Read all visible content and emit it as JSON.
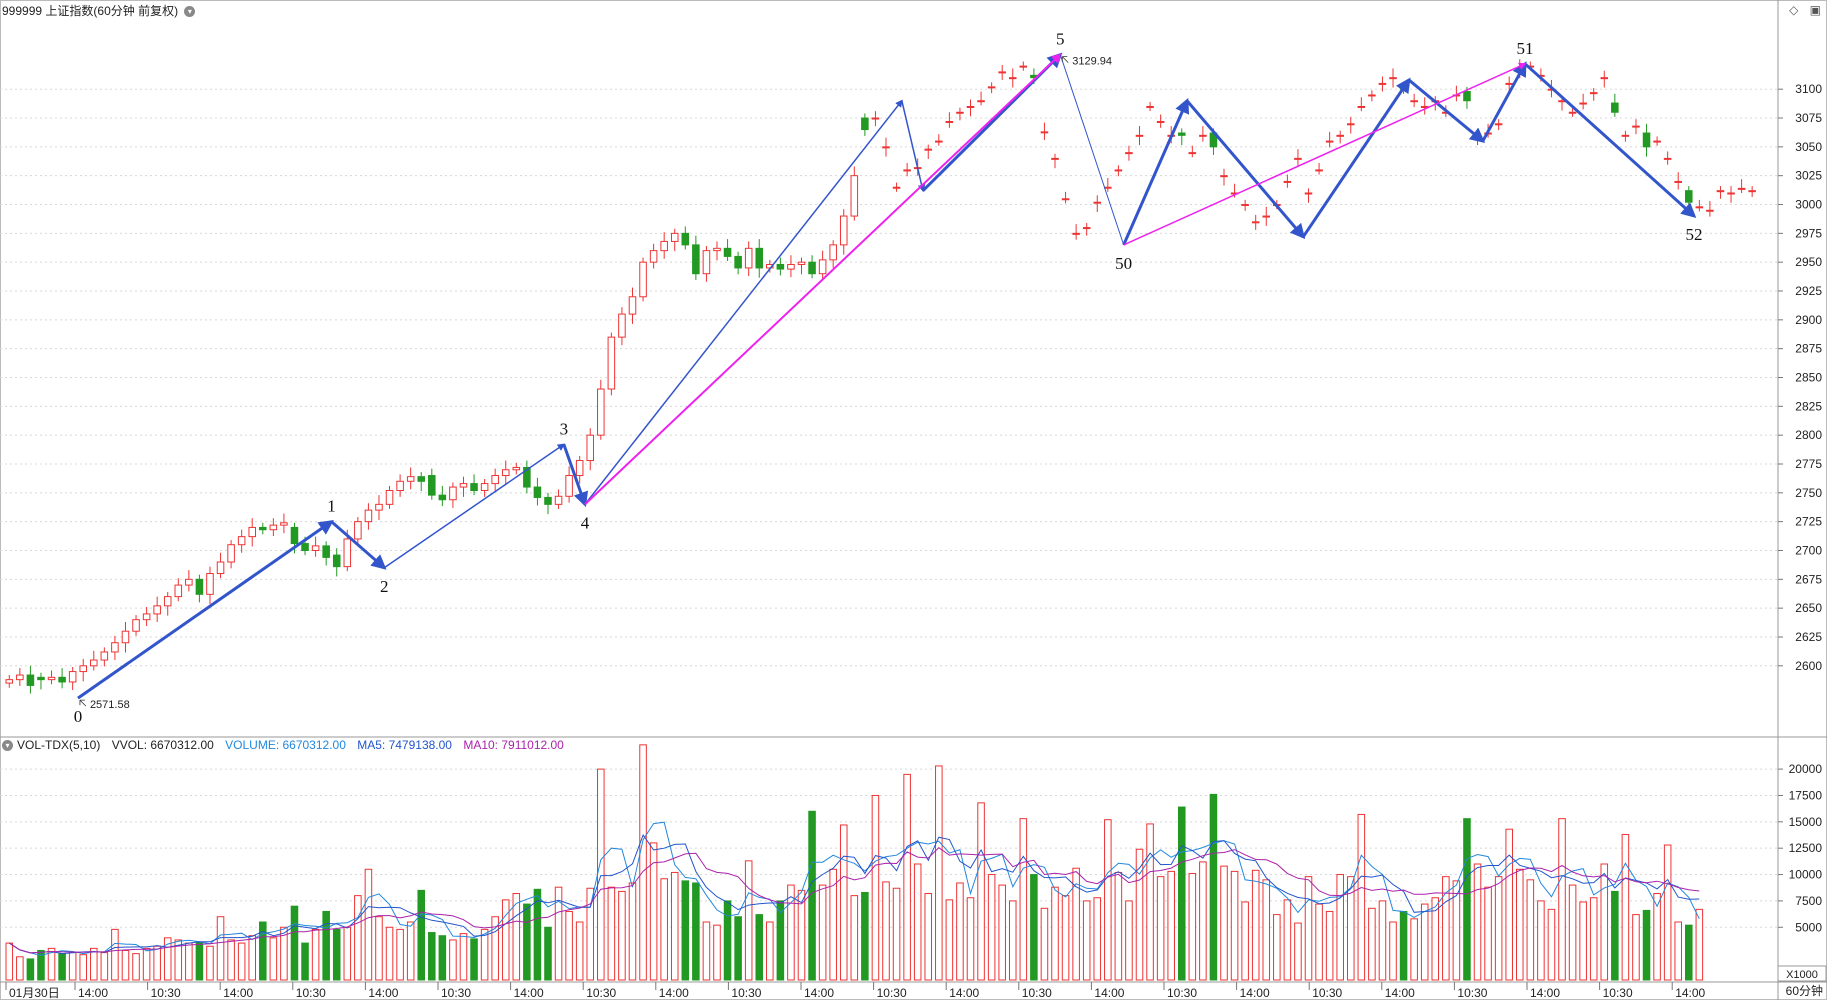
{
  "header": {
    "code": "999999",
    "name": "上证指数",
    "period": "(60分钟 前复权)",
    "menu_icon": "chevron-down-icon",
    "right_icons": [
      "diamond-icon",
      "window-restore-icon"
    ]
  },
  "volume_header": {
    "indicator": "VOL-TDX(5,10)",
    "vvol": "VVOL: 6670312.00",
    "volume": "VOLUME: 6670312.00",
    "ma5": "MA5: 7479138.00",
    "ma10": "MA10: 7911012.00"
  },
  "footer": {
    "first_date": "01月30日",
    "period_button": "60分钟",
    "unit": "X1000"
  },
  "colors": {
    "up": "#ee3333",
    "down": "#229922",
    "wave_blue": "#3355cc",
    "wave_magenta": "#ee22ee",
    "volume_line": "#2288dd",
    "ma5": "#2255cc",
    "ma10": "#aa22aa"
  },
  "chart_data": [
    {
      "type": "candlestick",
      "title": "999999 上证指数(60分钟 前复权)",
      "ylim": [
        2540,
        3160
      ],
      "yticks": [
        2600,
        2625,
        2650,
        2675,
        2700,
        2725,
        2750,
        2775,
        2800,
        2825,
        2850,
        2875,
        2900,
        2925,
        2950,
        2975,
        3000,
        3025,
        3050,
        3075,
        3100
      ],
      "xtick_labels": [
        "01月30日",
        "14:00",
        "10:30",
        "14:00",
        "10:30",
        "14:00",
        "10:30",
        "14:00",
        "10:30",
        "14:00",
        "10:30",
        "14:00",
        "10:30",
        "14:00",
        "10:30",
        "14:00",
        "10:30",
        "14:00",
        "10:30",
        "14:00",
        "10:30",
        "14:00",
        "10:30",
        "14:00"
      ],
      "grid": true,
      "annotations": [
        {
          "text": "2571.58"
        },
        {
          "text": "3129.94"
        }
      ],
      "wave_labels": [
        "0",
        "1",
        "2",
        "3",
        "4",
        "5",
        "50",
        "51",
        "52"
      ],
      "wave_points": [
        {
          "label": "0",
          "price": 2572
        },
        {
          "label": "1",
          "price": 2725
        },
        {
          "label": "2",
          "price": 2685
        },
        {
          "label": "3",
          "price": 2792
        },
        {
          "label": "4",
          "price": 2740
        },
        {
          "label": "",
          "price": 3090
        },
        {
          "label": "",
          "price": 3012
        },
        {
          "label": "5",
          "price": 3130
        },
        {
          "label": "50",
          "price": 2965
        },
        {
          "label": "",
          "price": 3090
        },
        {
          "label": "",
          "price": 2972
        },
        {
          "label": "",
          "price": 3108
        },
        {
          "label": "",
          "price": 3055
        },
        {
          "label": "51",
          "price": 3122
        },
        {
          "label": "52",
          "price": 2990
        }
      ],
      "closes": [
        2588,
        2592,
        2583,
        2588,
        2590,
        2586,
        2595,
        2600,
        2605,
        2612,
        2620,
        2630,
        2640,
        2645,
        2652,
        2660,
        2670,
        2675,
        2662,
        2680,
        2690,
        2705,
        2712,
        2720,
        2718,
        2722,
        2724,
        2706,
        2700,
        2704,
        2694,
        2686,
        2710,
        2725,
        2735,
        2740,
        2752,
        2760,
        2764,
        2760,
        2748,
        2744,
        2755,
        2758,
        2752,
        2758,
        2765,
        2770,
        2772,
        2755,
        2746,
        2740,
        2747,
        2765,
        2778,
        2800,
        2840,
        2885,
        2905,
        2920,
        2950,
        2960,
        2968,
        2975,
        2965,
        2940,
        2960,
        2962,
        2955,
        2945,
        2962,
        2945,
        2948,
        2944,
        2948,
        2950,
        2940,
        2952,
        2965,
        2990,
        3025,
        3065,
        3075,
        3050,
        3015,
        3030,
        3032,
        3048,
        3055,
        3072,
        3080,
        3085,
        3090,
        3102,
        3115,
        3110,
        3120,
        3110,
        3063,
        3040,
        3005,
        2975,
        2980,
        3002,
        3015,
        3030,
        3045,
        3060,
        3085,
        3072,
        3060,
        3060,
        3045,
        3060,
        3050,
        3025,
        3010,
        3000,
        2985,
        2990,
        3000,
        3020,
        3040,
        3010,
        3030,
        3055,
        3060,
        3070,
        3085,
        3095,
        3105,
        3110,
        3100,
        3090,
        3085,
        3090,
        3080,
        3095,
        3090,
        3060,
        3062,
        3070,
        3105,
        3118,
        3120,
        3112,
        3100,
        3090,
        3080,
        3088,
        3097,
        3110,
        3080,
        3060,
        3068,
        3050,
        3055,
        3040,
        3020,
        3002,
        2998,
        2995,
        3012,
        3010,
        3014,
        3012,
        3022
      ],
      "opens": [
        2585,
        2588,
        2592,
        2590,
        2588,
        2590,
        2586,
        2595,
        2600,
        2605,
        2612,
        2620,
        2630,
        2640,
        2645,
        2652,
        2660,
        2670,
        2675,
        2662,
        2680,
        2690,
        2705,
        2712,
        2720,
        2718,
        2722,
        2720,
        2706,
        2700,
        2704,
        2696,
        2686,
        2710,
        2725,
        2735,
        2740,
        2752,
        2760,
        2764,
        2765,
        2748,
        2744,
        2755,
        2758,
        2752,
        2758,
        2765,
        2770,
        2772,
        2755,
        2746,
        2740,
        2747,
        2765,
        2778,
        2800,
        2840,
        2885,
        2905,
        2920,
        2950,
        2960,
        2968,
        2975,
        2965,
        2940,
        2960,
        2962,
        2955,
        2945,
        2962,
        2945,
        2948,
        2944,
        2948,
        2950,
        2940,
        2952,
        2965,
        2990,
        3075,
        3075,
        3050,
        3015,
        3030,
        3032,
        3048,
        3055,
        3072,
        3080,
        3085,
        3090,
        3102,
        3115,
        3110,
        3120,
        3112,
        3063,
        3040,
        3005,
        2975,
        2980,
        3002,
        3015,
        3030,
        3045,
        3060,
        3085,
        3072,
        3060,
        3062,
        3045,
        3060,
        3062,
        3025,
        3010,
        3000,
        2985,
        2990,
        3000,
        3020,
        3040,
        3010,
        3030,
        3055,
        3060,
        3070,
        3085,
        3095,
        3105,
        3110,
        3102,
        3090,
        3085,
        3090,
        3080,
        3095,
        3098,
        3060,
        3062,
        3070,
        3105,
        3118,
        3120,
        3112,
        3100,
        3090,
        3080,
        3088,
        3097,
        3110,
        3088,
        3060,
        3068,
        3062,
        3055,
        3040,
        3020,
        3012,
        2998,
        2995,
        3012,
        3010,
        3014,
        3012
      ],
      "ma_lines": []
    },
    {
      "type": "bar",
      "title": "VOL-TDX(5,10)",
      "ylim": [
        0,
        22000
      ],
      "yticks": [
        5000,
        7500,
        10000,
        12500,
        15000,
        17500,
        20000
      ],
      "unit_label": "X1000",
      "series": [
        {
          "name": "VOLUME",
          "values": [
            3500,
            2200,
            2000,
            2800,
            3000,
            2500,
            2600,
            2400,
            3000,
            2600,
            4800,
            2800,
            2500,
            3000,
            3200,
            4000,
            3800,
            3500,
            3600,
            3200,
            6000,
            3800,
            3500,
            4200,
            5500,
            4000,
            5000,
            7000,
            3500,
            4800,
            6500,
            4800,
            5000,
            8000,
            10500,
            6000,
            5000,
            4800,
            5500,
            8500,
            4500,
            4200,
            3800,
            4400,
            3900,
            4800,
            6000,
            7600,
            8200,
            7200,
            8600,
            5000,
            8800,
            6500,
            5500,
            8700,
            20000,
            8800,
            8400,
            9200,
            22300,
            13000,
            9600,
            10200,
            9400,
            9200,
            5500,
            5200,
            7500,
            6000,
            11300,
            6200,
            5500,
            7500,
            9000,
            8500,
            16000,
            9000,
            10500,
            14700,
            8000,
            8300,
            17500,
            9300,
            8700,
            19500,
            11000,
            8200,
            20300,
            7600,
            9200,
            7800,
            16800,
            10000,
            9000,
            7500,
            15300,
            10000,
            6800,
            8800,
            8000,
            10600,
            7500,
            7800,
            15200,
            10200,
            7500,
            12400,
            14800,
            9800,
            10300,
            16400,
            10100,
            11200,
            17600,
            10800,
            10300,
            7400,
            10400,
            9500,
            6200,
            7600,
            5400,
            9800,
            7200,
            6500,
            10000,
            9800,
            15700,
            6800,
            7500,
            5500,
            6500,
            5800,
            7200,
            7800,
            9800,
            9400,
            15300,
            11000,
            8800,
            9800,
            14300,
            10500,
            9500,
            7500,
            6700,
            15300,
            9000,
            7400,
            7800,
            11000,
            8400,
            13800,
            6200,
            6600,
            8200,
            12800,
            5500,
            5200,
            6700
          ]
        },
        {
          "name": "MA5",
          "values": []
        },
        {
          "name": "MA10",
          "values": []
        }
      ]
    }
  ]
}
